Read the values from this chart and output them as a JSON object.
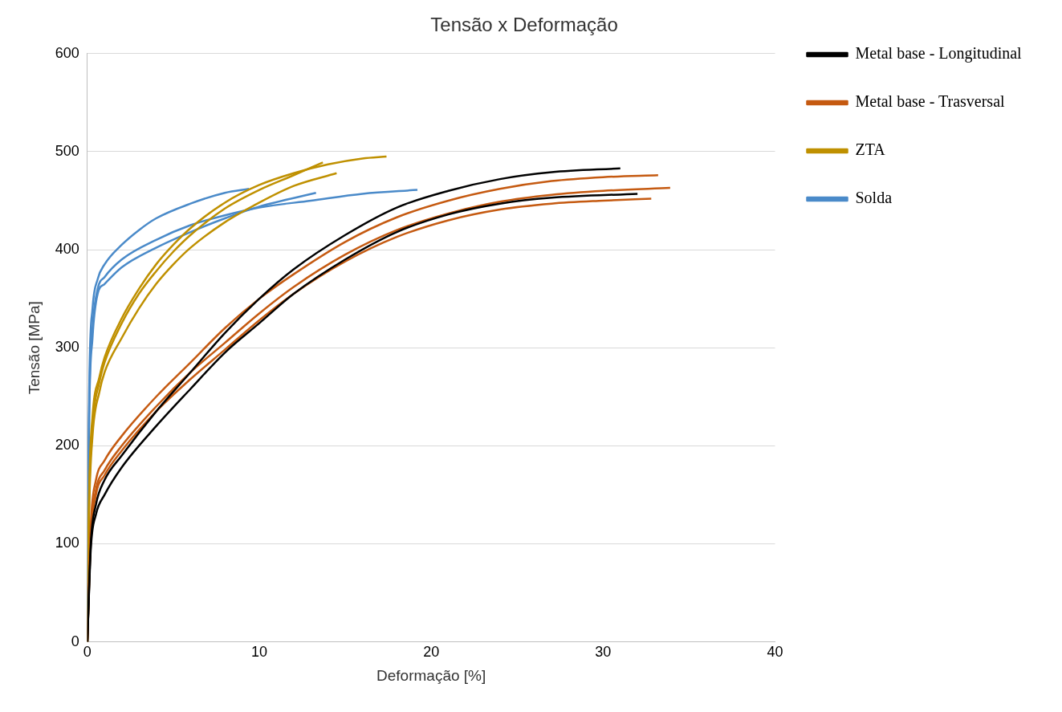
{
  "chart_data": {
    "type": "line",
    "title": "Tensão x Deformação",
    "xlabel": "Deformação [%]",
    "ylabel": "Tensão [MPa]",
    "xlim": [
      0,
      40
    ],
    "xticks": [
      0,
      10,
      20,
      30,
      40
    ],
    "ylim": [
      0,
      600
    ],
    "yticks": [
      0,
      100,
      200,
      300,
      400,
      500,
      600
    ],
    "grid": "y",
    "legend": "right",
    "series": [
      {
        "name": "Metal base - Longitudinal",
        "color": "#000000",
        "x": [
          0,
          0.2,
          0.5,
          1,
          2,
          4,
          6,
          8,
          10,
          12,
          15,
          18,
          21,
          24,
          27,
          31
        ],
        "values": [
          0,
          100,
          140,
          165,
          190,
          235,
          275,
          315,
          350,
          380,
          415,
          443,
          460,
          472,
          479,
          483
        ]
      },
      {
        "color": "#000000",
        "x": [
          0,
          0.2,
          0.5,
          1,
          2,
          4,
          6,
          8,
          10,
          12,
          15,
          18,
          21,
          24,
          27,
          32
        ],
        "values": [
          0,
          95,
          130,
          150,
          178,
          220,
          258,
          295,
          325,
          355,
          390,
          418,
          436,
          447,
          453,
          457
        ]
      },
      {
        "name": "Metal base - Trasversal",
        "color": "#c55a11",
        "x": [
          0,
          0.2,
          0.5,
          1,
          2,
          4,
          6,
          8,
          10,
          12,
          15,
          18,
          21,
          24,
          27,
          30,
          33.2
        ],
        "values": [
          0,
          120,
          165,
          185,
          210,
          250,
          285,
          320,
          350,
          375,
          408,
          433,
          450,
          462,
          470,
          474,
          476
        ]
      },
      {
        "color": "#c55a11",
        "x": [
          0,
          0.2,
          0.5,
          1,
          2,
          4,
          6,
          8,
          10,
          12,
          15,
          18,
          21,
          24,
          27,
          30,
          33.9
        ],
        "values": [
          0,
          110,
          155,
          175,
          200,
          240,
          275,
          305,
          335,
          362,
          395,
          420,
          437,
          449,
          456,
          460,
          463
        ]
      },
      {
        "color": "#c55a11",
        "x": [
          0,
          0.2,
          0.5,
          1,
          2,
          4,
          6,
          8,
          10,
          12,
          15,
          18,
          21,
          24,
          27,
          30,
          32.8
        ],
        "values": [
          0,
          105,
          150,
          170,
          195,
          235,
          268,
          298,
          328,
          355,
          388,
          413,
          430,
          441,
          447,
          450,
          452
        ]
      },
      {
        "name": "ZTA",
        "color": "#bf9000",
        "x": [
          0,
          0.1,
          0.3,
          0.7,
          1,
          2,
          3,
          4,
          5,
          6,
          8,
          10,
          12,
          14,
          16,
          17.4
        ],
        "values": [
          0,
          150,
          230,
          270,
          290,
          330,
          360,
          385,
          405,
          422,
          448,
          466,
          478,
          487,
          493,
          495
        ]
      },
      {
        "color": "#bf9000",
        "x": [
          0,
          0.1,
          0.3,
          0.7,
          1,
          2,
          3,
          4,
          5,
          6,
          8,
          10,
          12,
          13.7
        ],
        "values": [
          0,
          140,
          220,
          265,
          285,
          325,
          355,
          378,
          398,
          415,
          442,
          461,
          476,
          489
        ]
      },
      {
        "color": "#bf9000",
        "x": [
          0,
          0.1,
          0.3,
          0.7,
          1,
          2,
          3,
          4,
          5,
          6,
          8,
          10,
          12,
          14.5
        ],
        "values": [
          0,
          130,
          210,
          255,
          275,
          310,
          340,
          365,
          385,
          402,
          428,
          448,
          465,
          478
        ]
      },
      {
        "name": "Solda",
        "color": "#4a8ac9",
        "x": [
          0,
          0.1,
          0.3,
          0.6,
          1,
          2,
          3,
          4,
          6,
          8,
          9.4
        ],
        "values": [
          0,
          250,
          340,
          370,
          385,
          405,
          420,
          432,
          447,
          458,
          462
        ]
      },
      {
        "color": "#4a8ac9",
        "x": [
          0,
          0.1,
          0.3,
          0.6,
          1,
          2,
          4,
          6,
          8,
          10,
          13,
          16,
          19.2
        ],
        "values": [
          0,
          230,
          320,
          360,
          372,
          390,
          410,
          425,
          435,
          443,
          450,
          457,
          461
        ]
      },
      {
        "color": "#4a8ac9",
        "x": [
          0,
          0.1,
          0.3,
          0.6,
          1,
          2,
          4,
          6,
          8,
          10,
          13.3
        ],
        "values": [
          0,
          220,
          310,
          355,
          365,
          382,
          402,
          418,
          432,
          444,
          458
        ]
      }
    ]
  }
}
